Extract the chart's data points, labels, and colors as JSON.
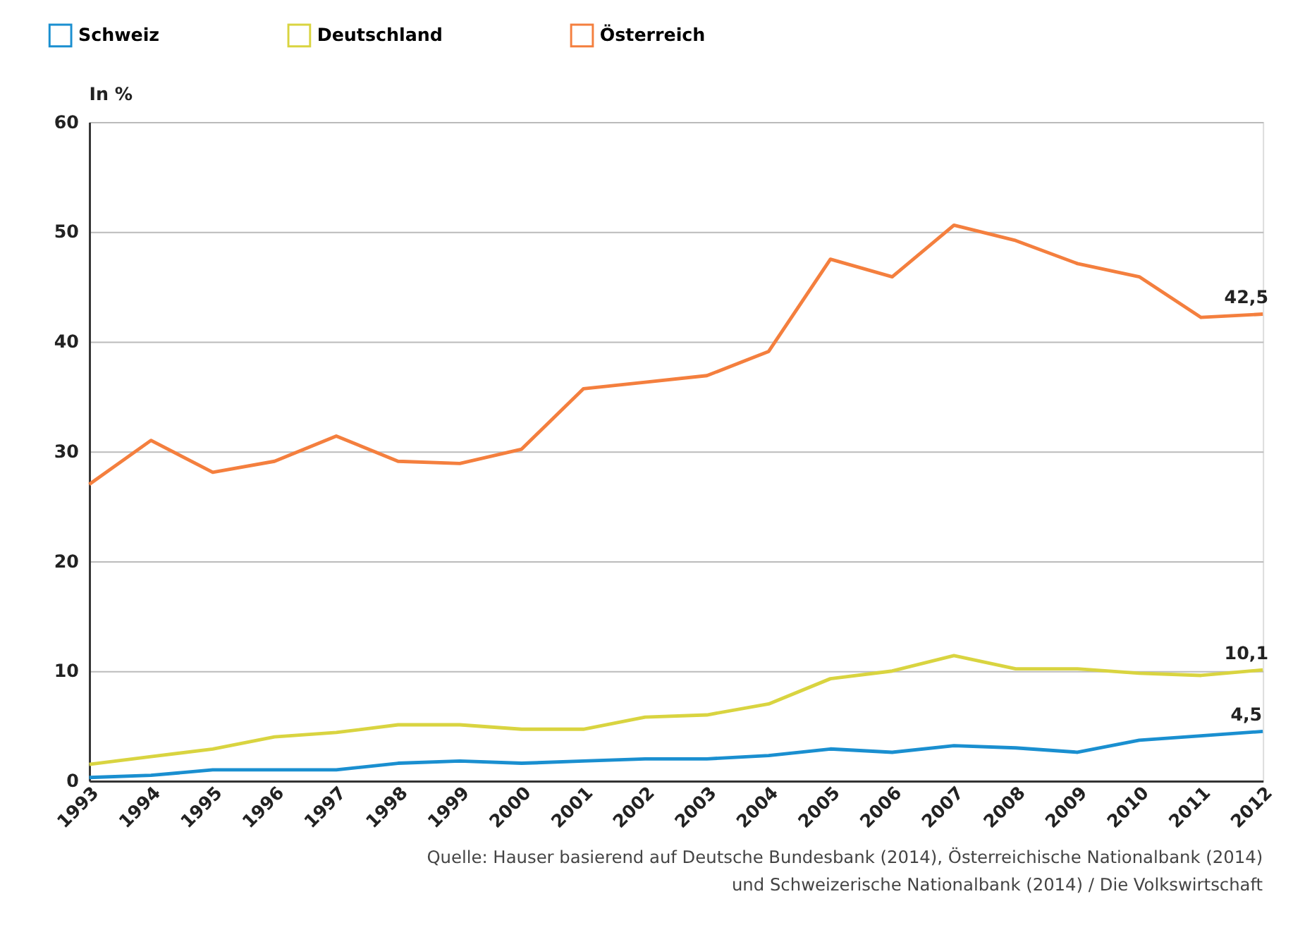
{
  "chart_data": {
    "type": "line",
    "ylabel": "In %",
    "categories": [
      "1993",
      "1994",
      "1995",
      "1996",
      "1997",
      "1998",
      "1999",
      "2000",
      "2001",
      "2002",
      "2003",
      "2004",
      "2005",
      "2006",
      "2007",
      "2008",
      "2009",
      "2010",
      "2011",
      "2012"
    ],
    "series": [
      {
        "name": "Schweiz",
        "color": "#1a8fd0",
        "values": [
          0.3,
          0.5,
          1.0,
          1.0,
          1.0,
          1.6,
          1.8,
          1.6,
          1.8,
          2.0,
          2.0,
          2.3,
          2.9,
          2.6,
          3.2,
          3.0,
          2.6,
          3.7,
          4.1,
          4.5
        ],
        "value_labels": [
          null,
          null,
          null,
          null,
          null,
          null,
          null,
          null,
          null,
          null,
          null,
          null,
          null,
          null,
          null,
          null,
          null,
          null,
          null,
          "4,5"
        ]
      },
      {
        "name": "Deutschland",
        "color": "#d9d440",
        "values": [
          1.5,
          2.2,
          2.9,
          4.0,
          4.4,
          5.1,
          5.1,
          4.7,
          4.7,
          5.8,
          6.0,
          7.0,
          9.3,
          10.0,
          11.4,
          10.2,
          10.2,
          9.8,
          9.6,
          10.1
        ],
        "value_labels": [
          null,
          null,
          null,
          null,
          null,
          null,
          null,
          null,
          null,
          null,
          null,
          null,
          null,
          null,
          null,
          null,
          null,
          null,
          null,
          "10,1"
        ]
      },
      {
        "name": "Österreich",
        "color": "#f47f3e",
        "values": [
          27.0,
          31.0,
          28.1,
          29.1,
          31.4,
          29.1,
          28.9,
          30.2,
          35.7,
          36.3,
          36.9,
          39.1,
          47.5,
          45.9,
          50.6,
          49.2,
          47.1,
          45.9,
          42.2,
          42.5
        ],
        "value_labels": [
          null,
          null,
          null,
          null,
          null,
          null,
          null,
          null,
          null,
          null,
          null,
          null,
          null,
          null,
          null,
          null,
          null,
          null,
          null,
          "42,5"
        ]
      }
    ],
    "ylim": [
      0,
      60
    ],
    "yticks": [
      0,
      10,
      20,
      30,
      40,
      50,
      60
    ],
    "grid": "y",
    "legend": "top left",
    "marker": "none",
    "line_style": "solid",
    "annotations": [
      "Quelle: Hauser basierend auf Deutsche Bundesbank (2014), Österreichische Nationalbank (2014)",
      "und Schweizerische Nationalbank (2014) / Die Volkswirtschaft"
    ]
  }
}
